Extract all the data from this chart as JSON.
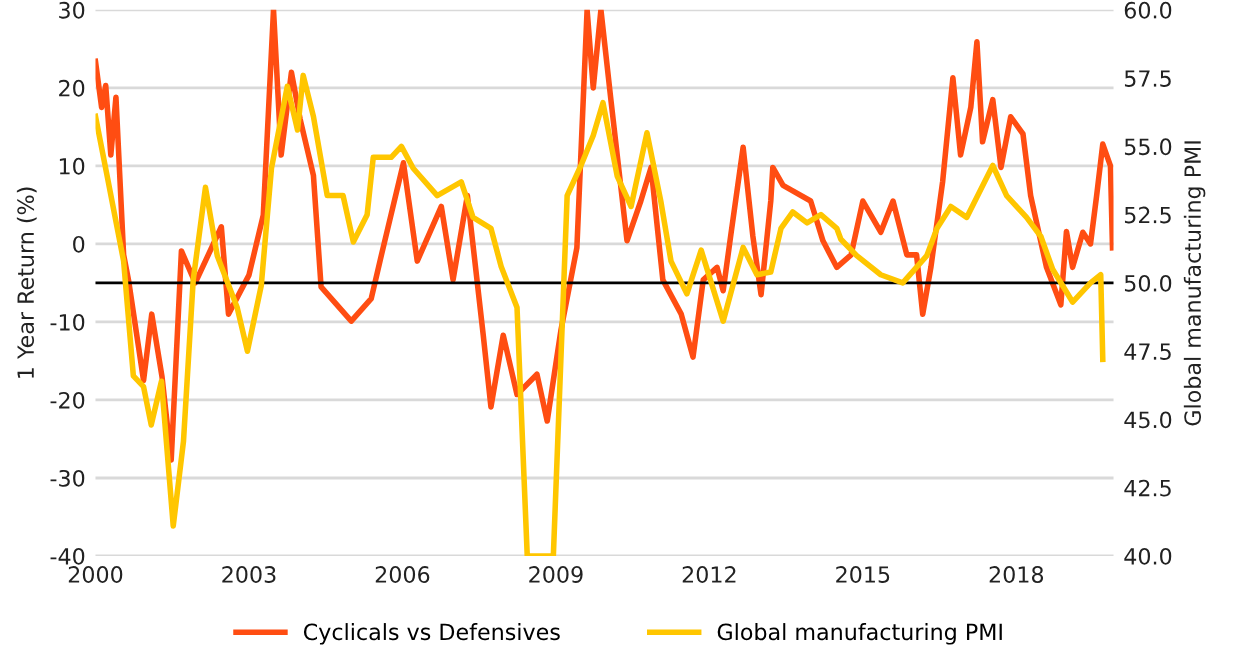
{
  "chart_data": {
    "type": "line",
    "ylabel": "1 Year Return (%)",
    "y2label": "Global manufacturing PMI",
    "xlim": [
      2000,
      2019.9
    ],
    "xticks": [
      2000,
      2003,
      2006,
      2009,
      2012,
      2015,
      2018
    ],
    "ylim": [
      -40,
      30
    ],
    "yticks": [
      -40,
      -30,
      -20,
      -10,
      0,
      10,
      20,
      30
    ],
    "y2lim": [
      40,
      60
    ],
    "y2ticks": [
      {
        "value": 40,
        "label": "40.0"
      },
      42.5,
      {
        "value": 45,
        "label": "45.0"
      },
      47.5,
      {
        "value": 50,
        "label": "50.0"
      },
      52.5,
      {
        "value": 55,
        "label": "55.0"
      },
      57.5,
      {
        "value": 60,
        "label": "60.0"
      }
    ],
    "grid": "y",
    "legend": "bottom",
    "line_style": "solid",
    "ref_lines": [
      {
        "axis": "y",
        "value": -5,
        "color": "#000000"
      }
    ],
    "series": [
      {
        "name": "Cyclicals vs Defensives",
        "color": "#ff4d12",
        "x": [
          2000.0,
          2000.12,
          2000.2,
          2000.3,
          2000.4,
          2000.55,
          2000.65,
          2000.94,
          2001.1,
          2001.3,
          2001.48,
          2001.68,
          2001.95,
          2002.46,
          2002.6,
          2003.0,
          2003.28,
          2003.48,
          2003.63,
          2003.83,
          2004.0,
          2004.26,
          2004.41,
          2005.0,
          2005.39,
          2005.59,
          2006.02,
          2006.29,
          2006.76,
          2006.99,
          2007.27,
          2007.58,
          2007.73,
          2007.97,
          2008.24,
          2008.63,
          2008.83,
          2009.1,
          2009.41,
          2009.61,
          2009.73,
          2009.88,
          2010.08,
          2010.39,
          2010.66,
          2010.86,
          2011.09,
          2011.45,
          2011.68,
          2011.88,
          2012.15,
          2012.27,
          2012.42,
          2012.66,
          2012.85,
          2013.01,
          2013.2,
          2013.24,
          2013.44,
          2013.98,
          2014.22,
          2014.49,
          2014.77,
          2015.0,
          2015.35,
          2015.59,
          2015.86,
          2016.05,
          2016.17,
          2016.33,
          2016.56,
          2016.76,
          2016.91,
          2017.11,
          2017.23,
          2017.34,
          2017.54,
          2017.7,
          2017.89,
          2018.13,
          2018.28,
          2018.59,
          2018.87,
          2018.98,
          2019.1,
          2019.3,
          2019.45,
          2019.57,
          2019.69,
          2019.84,
          2019.88
        ],
        "values": [
          23.4,
          17.5,
          20.3,
          11.4,
          18.8,
          -1.4,
          -4.8,
          -17.5,
          -9,
          -17,
          -27.7,
          -0.9,
          -5,
          2.2,
          -9,
          -4,
          3.7,
          30,
          11.4,
          22,
          16,
          8.8,
          -5.5,
          -9.9,
          -7,
          -1.4,
          10.4,
          -2.2,
          4.8,
          -4.6,
          6.2,
          -11.7,
          -20.9,
          -11.7,
          -19.3,
          -16.7,
          -22.7,
          -11,
          -0.5,
          30,
          20,
          30,
          18.2,
          0.4,
          5.5,
          9.8,
          -4.6,
          -9,
          -14.5,
          -4.6,
          -3,
          -6,
          1.2,
          12.4,
          1,
          -6.5,
          5.5,
          9.8,
          7.5,
          5.5,
          0.4,
          -3,
          -1.4,
          5.5,
          1.5,
          5.5,
          -1.4,
          -1.4,
          -9,
          -3,
          8,
          21.3,
          11.4,
          17.5,
          25.9,
          13.1,
          18.5,
          9.8,
          16.3,
          14.1,
          6.2,
          -3,
          -7.8,
          1.6,
          -3,
          1.5,
          0,
          6.2,
          12.8,
          10,
          -0.5
        ]
      },
      {
        "name": "Global manufacturing PMI",
        "color": "#ffc600",
        "axis": "y2",
        "x": [
          2000.0,
          2000.23,
          2000.55,
          2000.74,
          2000.94,
          2001.09,
          2001.29,
          2001.52,
          2001.72,
          2001.91,
          2002.15,
          2002.38,
          2002.77,
          2002.97,
          2003.24,
          2003.44,
          2003.75,
          2003.95,
          2004.06,
          2004.26,
          2004.53,
          2004.84,
          2005.04,
          2005.31,
          2005.43,
          2005.78,
          2005.98,
          2006.21,
          2006.68,
          2007.15,
          2007.38,
          2007.73,
          2007.93,
          2008.24,
          2008.44,
          2008.95,
          2009.22,
          2009.49,
          2009.73,
          2009.92,
          2010.2,
          2010.47,
          2010.78,
          2011.05,
          2011.25,
          2011.56,
          2011.84,
          2012.27,
          2012.66,
          2012.93,
          2013.2,
          2013.4,
          2013.63,
          2013.91,
          2014.18,
          2014.49,
          2014.57,
          2014.88,
          2015.35,
          2015.78,
          2016.25,
          2016.45,
          2016.72,
          2017.03,
          2017.54,
          2017.81,
          2018.2,
          2018.48,
          2018.71,
          2019.1,
          2019.45,
          2019.65,
          2019.69
        ],
        "values": [
          56.1,
          53.9,
          50.8,
          46.6,
          46.2,
          44.8,
          46.4,
          41.1,
          44.2,
          50.1,
          53.5,
          51,
          49.1,
          47.5,
          49.9,
          54.2,
          57.2,
          55.6,
          57.6,
          56.1,
          53.2,
          53.2,
          51.5,
          52.5,
          54.6,
          54.6,
          55,
          54.2,
          53.2,
          53.7,
          52.4,
          52,
          50.6,
          49.1,
          40,
          40,
          53.2,
          54.3,
          55.4,
          56.6,
          53.9,
          52.8,
          55.5,
          53,
          50.8,
          49.6,
          51.2,
          48.6,
          51.3,
          50.3,
          50.4,
          52,
          52.6,
          52.2,
          52.5,
          52,
          51.6,
          51,
          50.3,
          50,
          51,
          52,
          52.8,
          52.4,
          54.3,
          53.2,
          52.4,
          51.7,
          50.5,
          49.3,
          50,
          50.3,
          47.2
        ]
      }
    ]
  }
}
